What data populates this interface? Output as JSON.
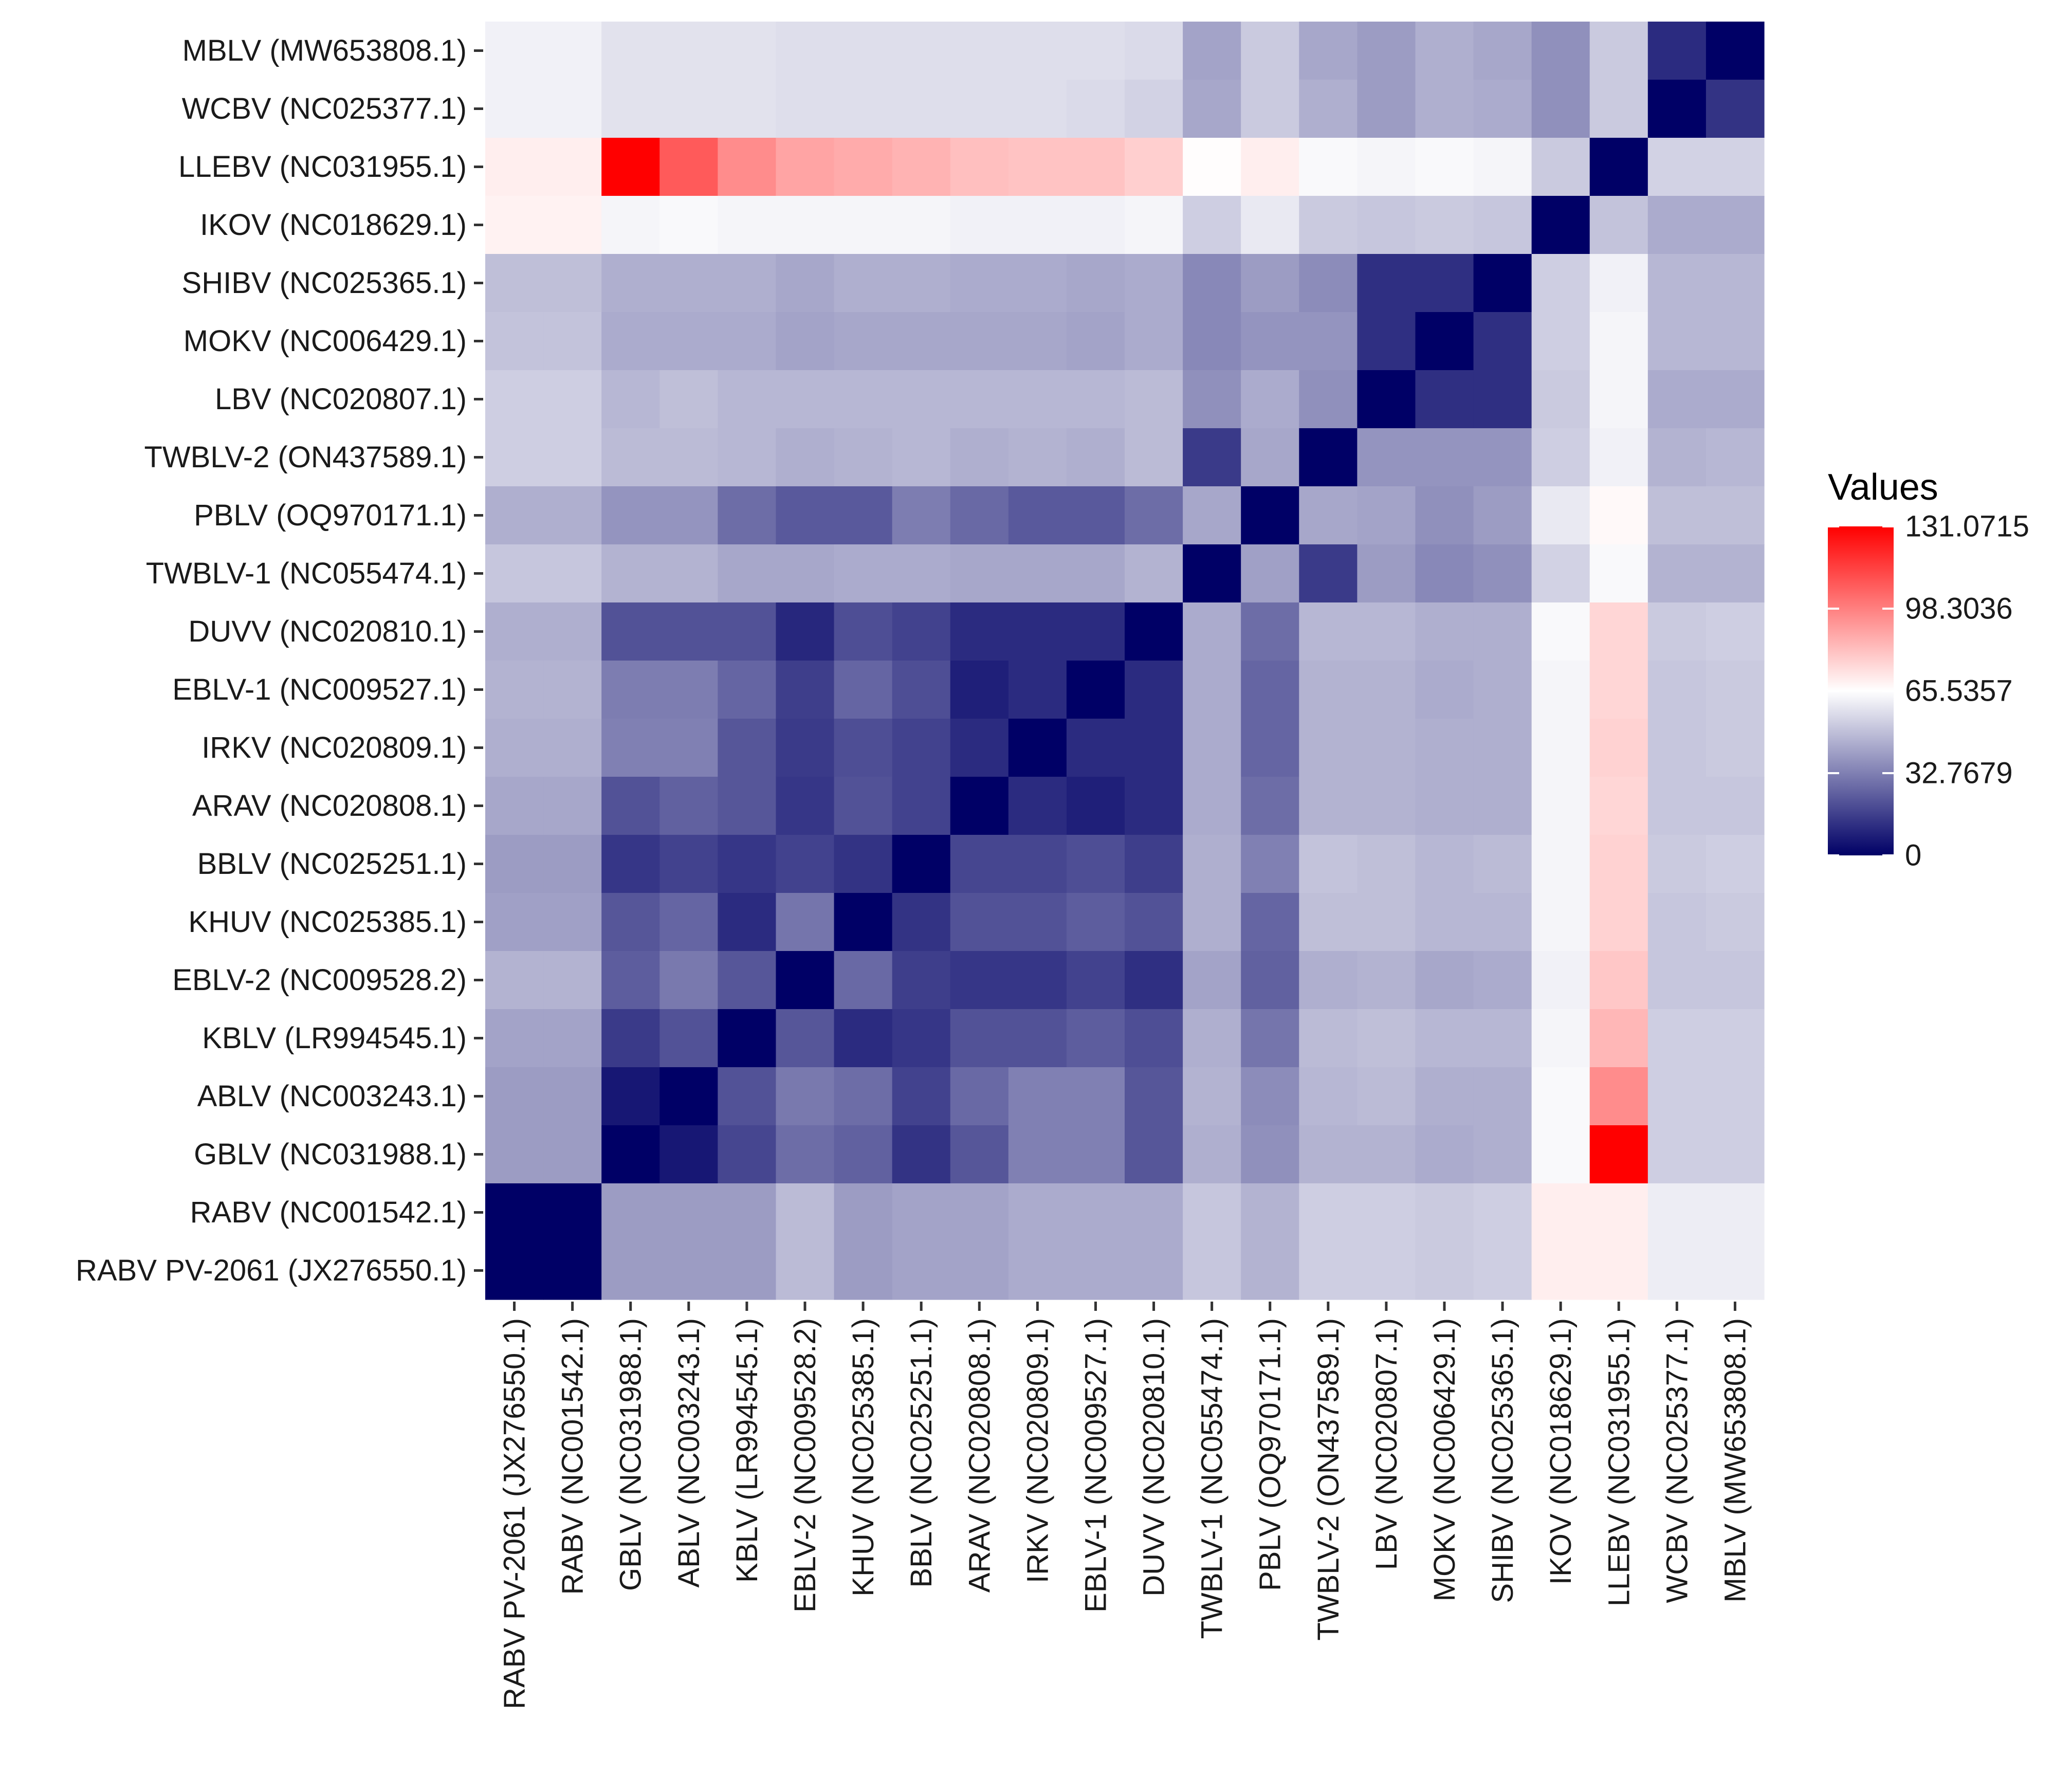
{
  "chart_data": {
    "type": "heatmap",
    "title": "",
    "xlabel": "",
    "ylabel": "",
    "legend_title": "Values",
    "legend_position": "right",
    "color_scale": {
      "low": "#000066",
      "mid": "#FFFFFF",
      "high": "#FF0000",
      "midpoint": 65.5357,
      "min": 0,
      "max": 131.0715
    },
    "legend_breaks": [
      "131.0715",
      "98.3036",
      "65.5357",
      "32.7679",
      "0"
    ],
    "legend_break_values": [
      131.0715,
      98.3036,
      65.5357,
      32.7679,
      0
    ],
    "x_categories": [
      "RABV PV-2061 (JX276550.1)",
      "RABV (NC001542.1)",
      "GBLV (NC031988.1)",
      "ABLV (NC003243.1)",
      "KBLV (LR994545.1)",
      "EBLV-2 (NC009528.2)",
      "KHUV (NC025385.1)",
      "BBLV (NC025251.1)",
      "ARAV (NC020808.1)",
      "IRKV (NC020809.1)",
      "EBLV-1 (NC009527.1)",
      "DUVV (NC020810.1)",
      "TWBLV-1 (NC055474.1)",
      "PBLV (OQ970171.1)",
      "TWBLV-2 (ON437589.1)",
      "LBV (NC020807.1)",
      "MOKV (NC006429.1)",
      "SHIBV (NC025365.1)",
      "IKOV (NC018629.1)",
      "LLEBV (NC031955.1)",
      "WCBV (NC025377.1)",
      "MBLV (MW653808.1)"
    ],
    "y_categories": [
      "MBLV (MW653808.1)",
      "WCBV (NC025377.1)",
      "LLEBV (NC031955.1)",
      "IKOV (NC018629.1)",
      "SHIBV (NC025365.1)",
      "MOKV (NC006429.1)",
      "LBV (NC020807.1)",
      "TWBLV-2 (ON437589.1)",
      "PBLV (OQ970171.1)",
      "TWBLV-1 (NC055474.1)",
      "DUVV (NC020810.1)",
      "EBLV-1 (NC009527.1)",
      "IRKV (NC020809.1)",
      "ARAV (NC020808.1)",
      "BBLV (NC025251.1)",
      "KHUV (NC025385.1)",
      "EBLV-2 (NC009528.2)",
      "KBLV (LR994545.1)",
      "ABLV (NC003243.1)",
      "GBLV (NC031988.1)",
      "RABV (NC001542.1)",
      "RABV PV-2061 (JX276550.1)"
    ],
    "values": [
      [
        62,
        62,
        58,
        58,
        58,
        57,
        57,
        57,
        57,
        57,
        57,
        56,
        42,
        52,
        43,
        40,
        45,
        43,
        37,
        52,
        11,
        0
      ],
      [
        62,
        62,
        58,
        58,
        58,
        57,
        57,
        57,
        57,
        57,
        56,
        54,
        43,
        52,
        45,
        40,
        45,
        44,
        37,
        52,
        0,
        13
      ],
      [
        70,
        70,
        131,
        108,
        95,
        89,
        87,
        85,
        82,
        81,
        81,
        78,
        66,
        70,
        64,
        63,
        64,
        63,
        52,
        0,
        54,
        54
      ],
      [
        69,
        69,
        63,
        64,
        63,
        63,
        63,
        63,
        62,
        62,
        62,
        63,
        53,
        60,
        52,
        51,
        52,
        51,
        0,
        50,
        44,
        44
      ],
      [
        49,
        49,
        45,
        45,
        45,
        43,
        45,
        45,
        44,
        44,
        43,
        44,
        35,
        40,
        36,
        12,
        12,
        0,
        53,
        62,
        47,
        47
      ],
      [
        50,
        50,
        44,
        44,
        44,
        42,
        43,
        43,
        43,
        43,
        42,
        44,
        35,
        38,
        38,
        12,
        0,
        12,
        53,
        63,
        47,
        47
      ],
      [
        53,
        53,
        47,
        49,
        47,
        47,
        47,
        47,
        47,
        47,
        47,
        48,
        37,
        44,
        37,
        0,
        12,
        12,
        52,
        63,
        44,
        44
      ],
      [
        53,
        53,
        48,
        48,
        47,
        45,
        46,
        47,
        45,
        46,
        45,
        48,
        15,
        43,
        0,
        38,
        38,
        38,
        53,
        62,
        46,
        47
      ],
      [
        45,
        45,
        38,
        38,
        28,
        23,
        23,
        32,
        27,
        23,
        23,
        28,
        43,
        0,
        43,
        42,
        37,
        40,
        60,
        67,
        49,
        49
      ],
      [
        51,
        51,
        46,
        46,
        43,
        43,
        44,
        44,
        43,
        43,
        43,
        46,
        0,
        41,
        15,
        40,
        35,
        37,
        54,
        64,
        46,
        46
      ],
      [
        45,
        45,
        21,
        21,
        21,
        10,
        20,
        17,
        11,
        11,
        11,
        0,
        44,
        28,
        47,
        47,
        45,
        45,
        64,
        76,
        52,
        53
      ],
      [
        46,
        46,
        32,
        32,
        26,
        16,
        26,
        20,
        8,
        11,
        0,
        11,
        44,
        26,
        46,
        46,
        44,
        45,
        63,
        76,
        51,
        52
      ],
      [
        45,
        45,
        33,
        33,
        22,
        15,
        20,
        17,
        11,
        0,
        11,
        11,
        44,
        26,
        46,
        46,
        45,
        45,
        63,
        77,
        51,
        52
      ],
      [
        43,
        43,
        21,
        25,
        22,
        14,
        21,
        17,
        0,
        11,
        8,
        11,
        44,
        28,
        46,
        46,
        45,
        45,
        63,
        76,
        51,
        51
      ],
      [
        40,
        40,
        14,
        17,
        14,
        17,
        13,
        0,
        18,
        18,
        20,
        16,
        45,
        33,
        50,
        49,
        47,
        48,
        63,
        77,
        52,
        53
      ],
      [
        41,
        41,
        22,
        26,
        11,
        30,
        0,
        13,
        21,
        21,
        24,
        21,
        45,
        26,
        49,
        49,
        47,
        47,
        63,
        77,
        51,
        52
      ],
      [
        46,
        46,
        24,
        31,
        22,
        0,
        27,
        16,
        14,
        14,
        17,
        12,
        42,
        25,
        45,
        46,
        43,
        44,
        62,
        80,
        51,
        51
      ],
      [
        42,
        42,
        15,
        21,
        0,
        22,
        11,
        14,
        21,
        21,
        24,
        20,
        45,
        30,
        48,
        49,
        47,
        47,
        63,
        84,
        53,
        53
      ],
      [
        40,
        40,
        6,
        0,
        21,
        31,
        28,
        17,
        27,
        33,
        33,
        22,
        46,
        36,
        47,
        48,
        45,
        45,
        64,
        95,
        53,
        53
      ],
      [
        40,
        40,
        0,
        6,
        18,
        28,
        25,
        13,
        22,
        33,
        33,
        22,
        45,
        37,
        46,
        46,
        44,
        45,
        64,
        131,
        53,
        53
      ],
      [
        0,
        0,
        40,
        40,
        40,
        48,
        40,
        42,
        42,
        44,
        44,
        44,
        51,
        46,
        53,
        53,
        52,
        53,
        70,
        70,
        61,
        61
      ],
      [
        0,
        0,
        40,
        40,
        40,
        48,
        40,
        42,
        42,
        44,
        44,
        44,
        51,
        46,
        53,
        53,
        52,
        53,
        70,
        70,
        61,
        61
      ]
    ]
  }
}
